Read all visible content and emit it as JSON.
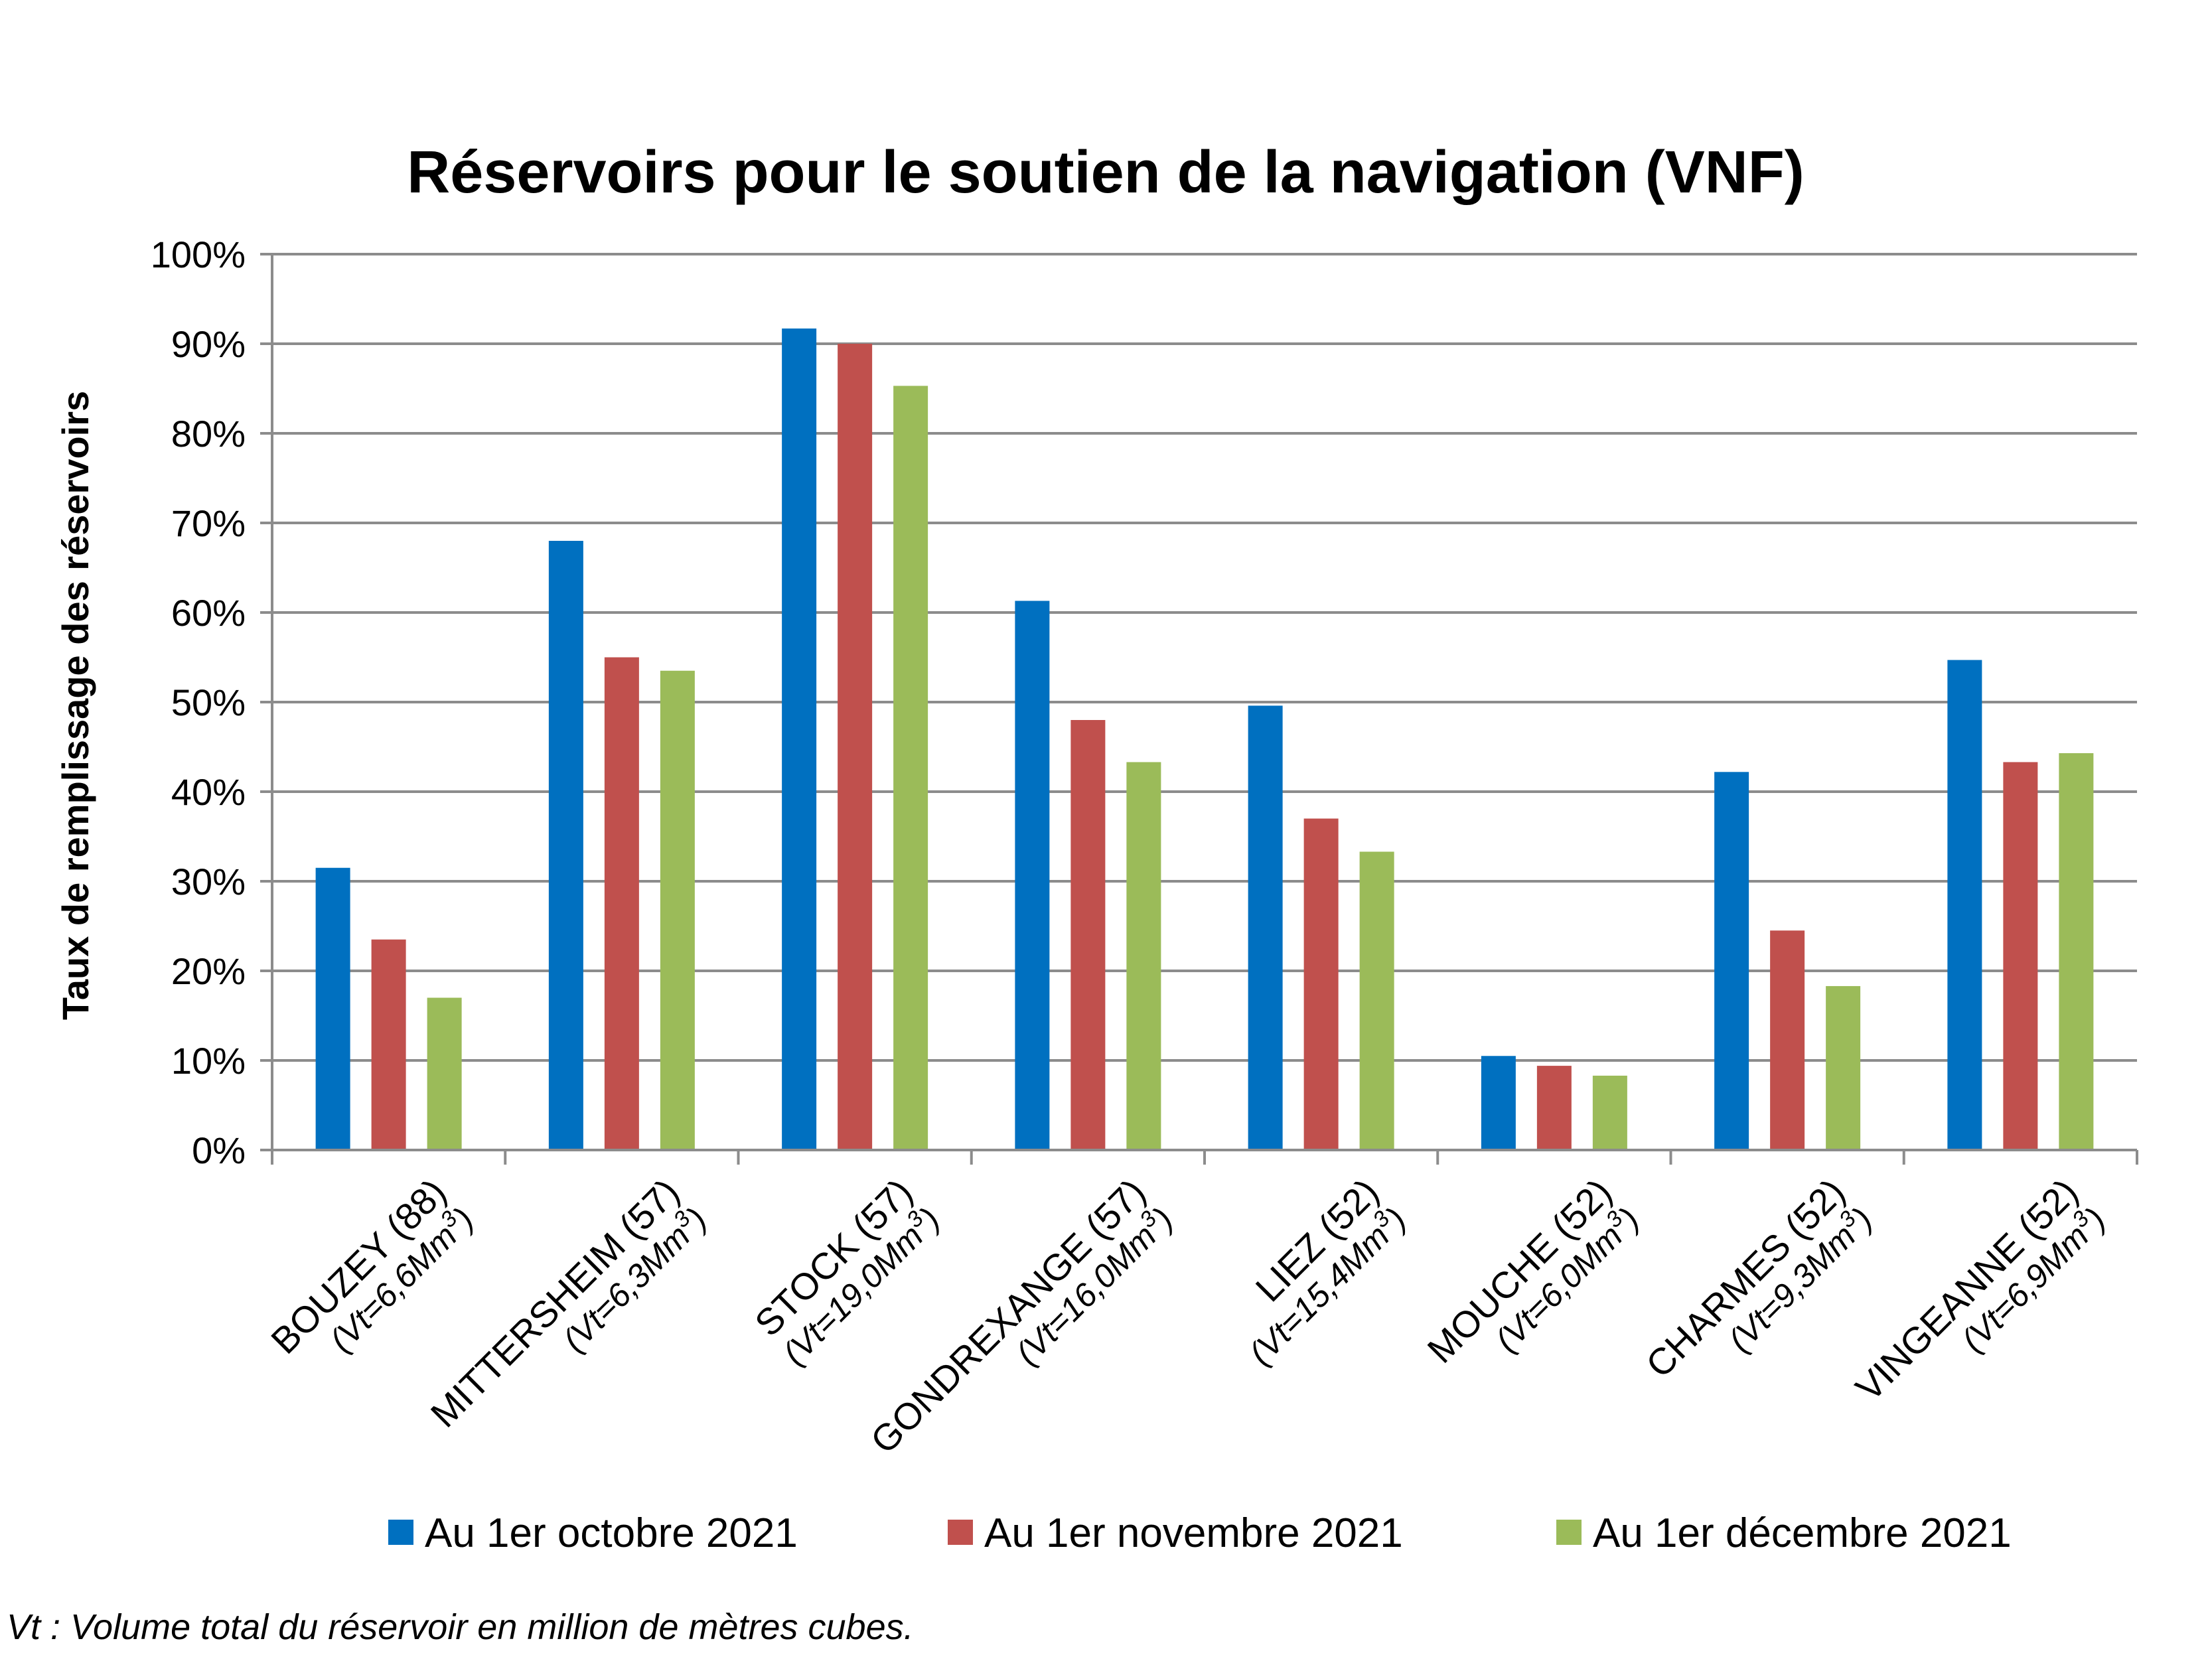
{
  "chart_data": {
    "type": "bar",
    "title": "Réservoirs pour le soutien de la navigation (VNF)",
    "ylabel": "Taux de remplissage des réservoirs",
    "xlabel": "",
    "ylim": [
      0,
      100
    ],
    "y_ticks": [
      "0%",
      "10%",
      "20%",
      "30%",
      "40%",
      "50%",
      "60%",
      "70%",
      "80%",
      "90%",
      "100%"
    ],
    "grid": true,
    "legend_position": "bottom",
    "categories": [
      {
        "name": "BOUZEY (88)",
        "sub_pre": "(Vt=6,6Mm",
        "sub_sup": "3",
        "sub_post": ")"
      },
      {
        "name": "MITTERSHEIM (57)",
        "sub_pre": "(Vt=6,3Mm",
        "sub_sup": "3",
        "sub_post": ")"
      },
      {
        "name": "STOCK (57)",
        "sub_pre": "(Vt=19,0Mm",
        "sub_sup": "3",
        "sub_post": ")"
      },
      {
        "name": "GONDREXANGE (57)",
        "sub_pre": "(Vt=16,0Mm",
        "sub_sup": "3",
        "sub_post": ")"
      },
      {
        "name": "LIEZ (52)",
        "sub_pre": "(Vt=15,4Mm",
        "sub_sup": "3",
        "sub_post": ")"
      },
      {
        "name": "MOUCHE (52)",
        "sub_pre": "(Vt=6,0Mm",
        "sub_sup": "3",
        "sub_post": ")"
      },
      {
        "name": "CHARMES (52)",
        "sub_pre": "(Vt=9,3Mm",
        "sub_sup": "3",
        "sub_post": ")"
      },
      {
        "name": "VINGEANNE (52)",
        "sub_pre": "(Vt=6,9Mm",
        "sub_sup": "3",
        "sub_post": ")"
      }
    ],
    "series": [
      {
        "name": "Au 1er octobre 2021",
        "color": "#0070c0",
        "values": [
          31.5,
          68,
          91.7,
          61.3,
          49.6,
          10.5,
          42.2,
          54.7
        ]
      },
      {
        "name": "Au 1er novembre 2021",
        "color": "#c0504d",
        "values": [
          23.5,
          55,
          90,
          48,
          37,
          9.4,
          24.5,
          43.3
        ]
      },
      {
        "name": "Au 1er décembre 2021",
        "color": "#9bbb59",
        "values": [
          17,
          53.5,
          85.3,
          43.3,
          33.3,
          8.3,
          18.3,
          44.3
        ]
      }
    ]
  },
  "footnote": "Vt : Volume total du réservoir en million de mètres cubes."
}
